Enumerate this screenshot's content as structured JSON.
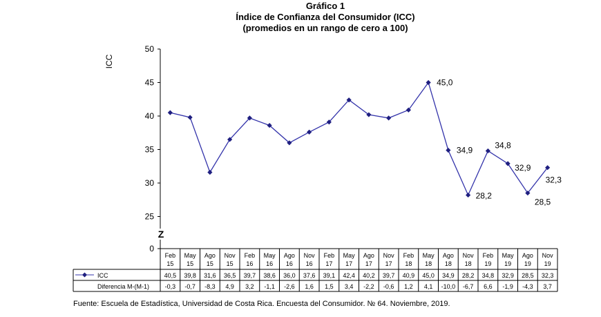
{
  "chart_data": {
    "type": "line",
    "title": "Gráfico 1",
    "subtitle": "Índice de Confianza del Consumidor (ICC)",
    "subtitle2": "(promedios en un rango de cero a 100)",
    "ylabel": "ICC",
    "ylim": [
      0,
      50
    ],
    "yticks": [
      "0",
      "25",
      "30",
      "35",
      "40",
      "45",
      "50"
    ],
    "axis_break_mark": "Z",
    "categories": [
      [
        "Feb",
        "15"
      ],
      [
        "May",
        "15"
      ],
      [
        "Ago",
        "15"
      ],
      [
        "Nov",
        "15"
      ],
      [
        "Feb",
        "16"
      ],
      [
        "May",
        "16"
      ],
      [
        "Ago",
        "16"
      ],
      [
        "Nov",
        "16"
      ],
      [
        "Feb",
        "17"
      ],
      [
        "May",
        "17"
      ],
      [
        "Ago",
        "17"
      ],
      [
        "Nov",
        "17"
      ],
      [
        "Feb",
        "18"
      ],
      [
        "May",
        "18"
      ],
      [
        "Ago",
        "18"
      ],
      [
        "Nov",
        "18"
      ],
      [
        "Feb",
        "19"
      ],
      [
        "May",
        "19"
      ],
      [
        "Ago",
        "19"
      ],
      [
        "Nov",
        "19"
      ]
    ],
    "series": [
      {
        "name": "ICC",
        "values": [
          40.5,
          39.8,
          31.6,
          36.5,
          39.7,
          38.6,
          36.0,
          37.6,
          39.1,
          42.4,
          40.2,
          39.7,
          40.9,
          45.0,
          34.9,
          28.2,
          34.8,
          32.9,
          28.5,
          32.3
        ],
        "table_values": [
          "40,5",
          "39,8",
          "31,6",
          "36,5",
          "39,7",
          "38,6",
          "36,0",
          "37,6",
          "39,1",
          "42,4",
          "40,2",
          "39,7",
          "40,9",
          "45,0",
          "34,9",
          "28,2",
          "34,8",
          "32,9",
          "28,5",
          "32,3"
        ]
      }
    ],
    "diff_row": {
      "name": "Diferencia M-(M-1)",
      "values": [
        "-0,3",
        "-0,7",
        "-8,3",
        "4,9",
        "3,2",
        "-1,1",
        "-2,6",
        "1,6",
        "1,5",
        "3,4",
        "-2,2",
        "-0,6",
        "1,2",
        "4,1",
        "-10,0",
        "-6,7",
        "6,6",
        "-1,9",
        "-4,3",
        "3,7"
      ]
    },
    "data_labels": [
      {
        "index": 13,
        "text": "45,0"
      },
      {
        "index": 14,
        "text": "34,9"
      },
      {
        "index": 15,
        "text": "28,2"
      },
      {
        "index": 16,
        "text": "34,8"
      },
      {
        "index": 17,
        "text": "32,9"
      },
      {
        "index": 18,
        "text": "28,5"
      },
      {
        "index": 19,
        "text": "32,3"
      }
    ],
    "source": "Fuente: Escuela de Estadística, Universidad de Costa Rica. Encuesta del Consumidor. № 64. Noviembre, 2019.",
    "colors": {
      "line": "#3333aa",
      "marker": "#1f1f80"
    },
    "grid": false
  }
}
